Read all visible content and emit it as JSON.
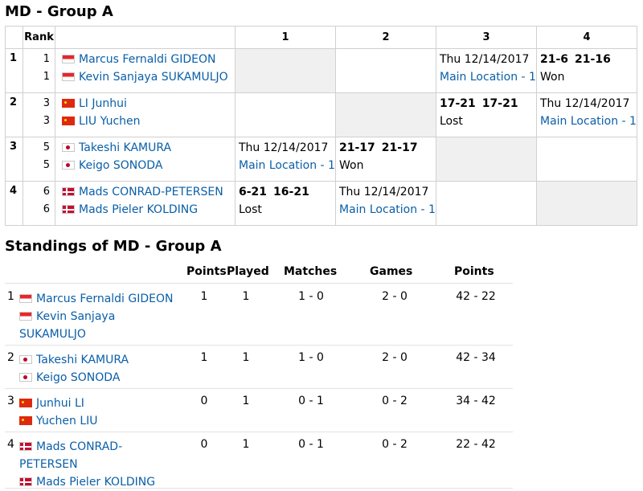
{
  "group": {
    "title": "MD - Group A",
    "headers": {
      "rank": "Rank",
      "cols": [
        "1",
        "2",
        "3",
        "4"
      ]
    },
    "rows": [
      {
        "pos": "1",
        "players": [
          {
            "rank": "1",
            "flag": "indonesia-flag",
            "name": "Marcus Fernaldi GIDEON"
          },
          {
            "rank": "1",
            "flag": "indonesia-flag",
            "name": "Kevin Sanjaya SUKAMULJO"
          }
        ],
        "cells": [
          {
            "kind": "self"
          },
          {
            "kind": "empty"
          },
          {
            "kind": "schedule",
            "date": "Thu 12/14/2017",
            "location": "Main Location - 1"
          },
          {
            "kind": "result",
            "scores": [
              "21-6",
              "21-16"
            ],
            "outcome": "Won"
          }
        ]
      },
      {
        "pos": "2",
        "players": [
          {
            "rank": "3",
            "flag": "china-flag",
            "name": "LI Junhui"
          },
          {
            "rank": "3",
            "flag": "china-flag",
            "name": "LIU Yuchen"
          }
        ],
        "cells": [
          {
            "kind": "empty"
          },
          {
            "kind": "self"
          },
          {
            "kind": "result",
            "scores": [
              "17-21",
              "17-21"
            ],
            "outcome": "Lost"
          },
          {
            "kind": "schedule",
            "date": "Thu 12/14/2017",
            "location": "Main Location - 1"
          }
        ]
      },
      {
        "pos": "3",
        "players": [
          {
            "rank": "5",
            "flag": "japan-flag",
            "name": "Takeshi KAMURA"
          },
          {
            "rank": "5",
            "flag": "japan-flag",
            "name": "Keigo SONODA"
          }
        ],
        "cells": [
          {
            "kind": "schedule",
            "date": "Thu 12/14/2017",
            "location": "Main Location - 1"
          },
          {
            "kind": "result",
            "scores": [
              "21-17",
              "21-17"
            ],
            "outcome": "Won"
          },
          {
            "kind": "self"
          },
          {
            "kind": "empty"
          }
        ]
      },
      {
        "pos": "4",
        "players": [
          {
            "rank": "6",
            "flag": "denmark-flag",
            "name": "Mads CONRAD-PETERSEN"
          },
          {
            "rank": "6",
            "flag": "denmark-flag",
            "name": "Mads Pieler KOLDING"
          }
        ],
        "cells": [
          {
            "kind": "result",
            "scores": [
              "6-21",
              "16-21"
            ],
            "outcome": "Lost"
          },
          {
            "kind": "schedule",
            "date": "Thu 12/14/2017",
            "location": "Main Location - 1"
          },
          {
            "kind": "empty"
          },
          {
            "kind": "self"
          }
        ]
      }
    ]
  },
  "standings": {
    "title": "Standings of MD - Group A",
    "headers": {
      "points": "Points",
      "played": "Played",
      "matches": "Matches",
      "games": "Games",
      "game_points": "Points"
    },
    "rows": [
      {
        "pos": "1",
        "players": [
          {
            "flag": "indonesia-flag",
            "name": "Marcus Fernaldi GIDEON"
          },
          {
            "flag": "indonesia-flag",
            "name": "Kevin Sanjaya SUKAMULJO"
          }
        ],
        "points": "1",
        "played": "1",
        "matches": "1 - 0",
        "games": "2 - 0",
        "game_points": "42 - 22"
      },
      {
        "pos": "2",
        "players": [
          {
            "flag": "japan-flag",
            "name": "Takeshi KAMURA"
          },
          {
            "flag": "japan-flag",
            "name": "Keigo SONODA"
          }
        ],
        "points": "1",
        "played": "1",
        "matches": "1 - 0",
        "games": "2 - 0",
        "game_points": "42 - 34"
      },
      {
        "pos": "3",
        "players": [
          {
            "flag": "china-flag",
            "name": "Junhui LI"
          },
          {
            "flag": "china-flag",
            "name": "Yuchen LIU"
          }
        ],
        "points": "0",
        "played": "1",
        "matches": "0 - 1",
        "games": "0 - 2",
        "game_points": "34 - 42"
      },
      {
        "pos": "4",
        "players": [
          {
            "flag": "denmark-flag",
            "name": "Mads CONRAD-PETERSEN"
          },
          {
            "flag": "denmark-flag",
            "name": "Mads Pieler KOLDING"
          }
        ],
        "points": "0",
        "played": "1",
        "matches": "0 - 1",
        "games": "0 - 2",
        "game_points": "22 - 42"
      }
    ]
  },
  "colors": {
    "link": "#0a5fa8",
    "self_cell": "#f0f0f0",
    "border": "#d0d0d0"
  }
}
